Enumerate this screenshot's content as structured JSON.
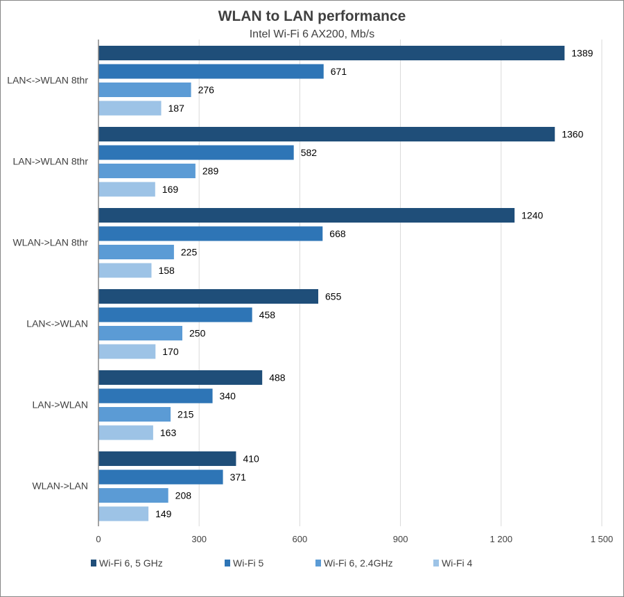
{
  "chart_data": {
    "type": "bar",
    "orientation": "horizontal",
    "title": "WLAN to LAN performance",
    "subtitle": "Intel Wi-Fi 6 AX200, Mb/s",
    "xlabel": "",
    "ylabel": "",
    "xlim": [
      0,
      1500
    ],
    "xticks": [
      0,
      300,
      600,
      900,
      1200,
      1500
    ],
    "xtick_labels": [
      "0",
      "300",
      "600",
      "900",
      "1 200",
      "1 500"
    ],
    "grid": true,
    "legend_position": "bottom",
    "categories": [
      "LAN<->WLAN 8thr",
      "LAN->WLAN 8thr",
      "WLAN->LAN 8thr",
      "LAN<->WLAN",
      "LAN->WLAN",
      "WLAN->LAN"
    ],
    "series": [
      {
        "name": "Wi-Fi 6, 5 GHz",
        "color": "#1f4e79",
        "values": [
          1389,
          1360,
          1240,
          655,
          488,
          410
        ]
      },
      {
        "name": "Wi-Fi 5",
        "color": "#2e75b6",
        "values": [
          671,
          582,
          668,
          458,
          340,
          371
        ]
      },
      {
        "name": "Wi-Fi 6, 2.4GHz",
        "color": "#5b9bd5",
        "values": [
          276,
          289,
          225,
          250,
          215,
          208
        ]
      },
      {
        "name": "Wi-Fi 4",
        "color": "#9dc3e6",
        "values": [
          187,
          169,
          158,
          170,
          163,
          149
        ]
      }
    ]
  }
}
